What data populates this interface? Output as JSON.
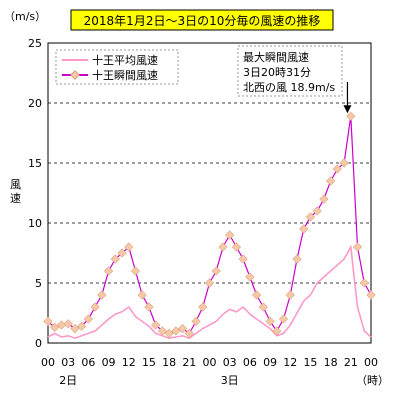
{
  "chart_data": {
    "type": "line",
    "title": "2018年1月2日～3日の10分毎の風速の推移",
    "unit_label": "（m/s）",
    "ylabel": "風速",
    "ylim": [
      0,
      25
    ],
    "yticks": [
      0,
      5,
      10,
      15,
      20,
      25
    ],
    "xlim": [
      0,
      48
    ],
    "xtick_labels": [
      "00",
      "03",
      "06",
      "09",
      "12",
      "15",
      "18",
      "21",
      "00",
      "03",
      "06",
      "09",
      "12",
      "15",
      "18",
      "21",
      "00"
    ],
    "x_unit_label": "（時）",
    "day_labels": [
      {
        "x": 3,
        "label": "2日"
      },
      {
        "x": 27,
        "label": "3日"
      }
    ],
    "grid": "horizontal-dashed",
    "legend_position": "top-left",
    "annotation": {
      "lines": [
        "最大瞬間風速",
        "3日20時31分",
        "北西の風 18.9m/s"
      ],
      "x": 44.5,
      "y": 18.9
    },
    "series": [
      {
        "name": "十王平均風速",
        "color": "#ff99cc",
        "x": [
          0,
          1,
          2,
          3,
          4,
          5,
          6,
          7,
          8,
          9,
          10,
          11,
          12,
          13,
          14,
          15,
          16,
          17,
          18,
          19,
          20,
          21,
          22,
          23,
          24,
          25,
          26,
          27,
          28,
          29,
          30,
          31,
          32,
          33,
          34,
          35,
          36,
          37,
          38,
          39,
          40,
          41,
          42,
          43,
          44,
          45,
          46,
          47,
          48
        ],
        "values": [
          0.5,
          0.8,
          0.5,
          0.6,
          0.4,
          0.6,
          0.8,
          1.0,
          1.5,
          2.0,
          2.4,
          2.6,
          3.0,
          2.2,
          1.8,
          1.4,
          0.8,
          0.6,
          0.4,
          0.5,
          0.6,
          0.4,
          0.8,
          1.2,
          1.5,
          1.8,
          2.4,
          2.8,
          2.6,
          3.0,
          2.4,
          2.0,
          1.6,
          1.2,
          0.6,
          0.8,
          1.5,
          2.5,
          3.5,
          4.0,
          5.0,
          5.5,
          6.0,
          6.5,
          7.0,
          8.0,
          3.0,
          1.0,
          0.5
        ]
      },
      {
        "name": "十王瞬間風速",
        "color": "#cc00cc",
        "marker_color": "#f5c8a8",
        "x": [
          0,
          1,
          2,
          3,
          4,
          5,
          6,
          7,
          8,
          9,
          10,
          11,
          12,
          13,
          14,
          15,
          16,
          17,
          18,
          19,
          20,
          21,
          22,
          23,
          24,
          25,
          26,
          27,
          28,
          29,
          30,
          31,
          32,
          33,
          34,
          35,
          36,
          37,
          38,
          39,
          40,
          41,
          42,
          43,
          44,
          45,
          46,
          47,
          48
        ],
        "values": [
          1.8,
          1.3,
          1.5,
          1.6,
          1.2,
          1.4,
          2.0,
          3.0,
          4.0,
          6.0,
          7.0,
          7.5,
          8.0,
          6.0,
          4.0,
          3.0,
          1.5,
          1.0,
          0.8,
          1.0,
          1.2,
          0.8,
          1.8,
          3.0,
          5.0,
          6.0,
          8.0,
          9.0,
          8.0,
          7.0,
          5.5,
          4.0,
          3.0,
          1.8,
          1.0,
          2.0,
          4.0,
          7.0,
          9.5,
          10.5,
          11.0,
          12.0,
          13.5,
          14.5,
          15.0,
          18.9,
          8.0,
          5.0,
          4.0
        ]
      }
    ]
  }
}
